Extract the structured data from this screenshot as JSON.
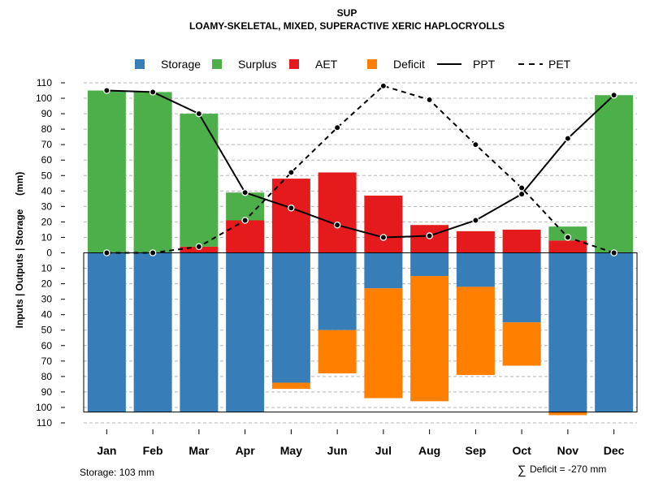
{
  "chart_data": {
    "type": "bar",
    "title": "SUP",
    "subtitle": "LOAMY-SKELETAL, MIXED, SUPERACTIVE XERIC HAPLOCRYOLLS",
    "ylabel": "Inputs | Outputs | Storage     (mm)",
    "ylim": [
      -110,
      110
    ],
    "yticks": [
      110,
      100,
      90,
      80,
      70,
      60,
      50,
      40,
      30,
      20,
      10,
      0,
      -10,
      -20,
      -30,
      -40,
      -50,
      -60,
      -70,
      -80,
      -90,
      -100,
      -110
    ],
    "ytick_labels": [
      "110",
      "100",
      "90",
      "80",
      "70",
      "60",
      "50",
      "40",
      "30",
      "20",
      "10",
      "0",
      "10",
      "20",
      "30",
      "40",
      "50",
      "60",
      "70",
      "80",
      "90",
      "100",
      "110"
    ],
    "categories": [
      "Jan",
      "Feb",
      "Mar",
      "Apr",
      "May",
      "Jun",
      "Jul",
      "Aug",
      "Sep",
      "Oct",
      "Nov",
      "Dec"
    ],
    "legend": [
      {
        "name": "Storage",
        "kind": "box",
        "color": "#377EB8"
      },
      {
        "name": "Surplus",
        "kind": "box",
        "color": "#4DAF4A"
      },
      {
        "name": "AET",
        "kind": "box",
        "color": "#E41A1C"
      },
      {
        "name": "Deficit",
        "kind": "box",
        "color": "#FF7F00"
      },
      {
        "name": "PPT",
        "kind": "solid"
      },
      {
        "name": "PET",
        "kind": "dashed"
      }
    ],
    "series": [
      {
        "name": "AET",
        "color": "#E41A1C",
        "values": [
          0,
          0,
          4,
          21,
          48,
          52,
          37,
          18,
          14,
          15,
          8,
          0
        ]
      },
      {
        "name": "Surplus",
        "color": "#4DAF4A",
        "values": [
          105,
          104,
          86,
          18,
          0,
          0,
          0,
          0,
          0,
          0,
          9,
          102
        ]
      },
      {
        "name": "Storage",
        "color": "#377EB8",
        "values": [
          103,
          103,
          103,
          103,
          84,
          50,
          23,
          15,
          22,
          45,
          103,
          103
        ]
      },
      {
        "name": "Deficit",
        "color": "#FF7F00",
        "values": [
          0,
          0,
          0,
          0,
          4,
          28,
          71,
          81,
          57,
          28,
          2,
          0
        ]
      },
      {
        "name": "PPT",
        "style": "solid",
        "values": [
          105,
          104,
          90,
          39,
          29,
          18,
          10,
          11,
          21,
          38,
          74,
          102
        ]
      },
      {
        "name": "PET",
        "style": "dashed",
        "values": [
          0,
          0,
          4,
          21,
          52,
          81,
          108,
          99,
          70,
          42,
          10,
          0
        ]
      }
    ],
    "storage_capacity": 103
  },
  "footer": {
    "storage_note": "Storage: 103 mm",
    "deficit_symbol": "∑",
    "deficit_note": "Deficit = -270 mm"
  }
}
